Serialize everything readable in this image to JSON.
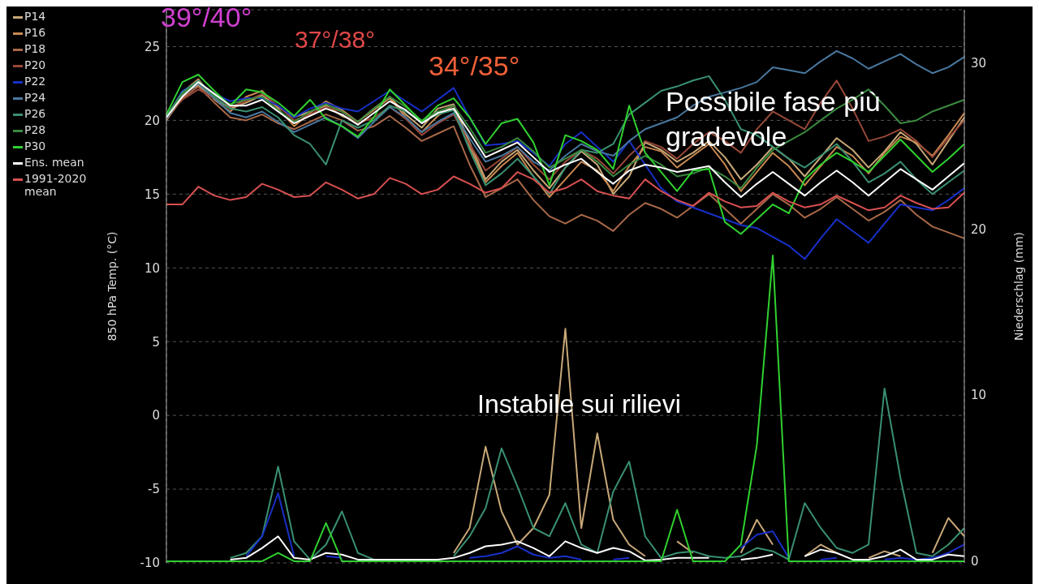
{
  "chart_data": {
    "type": "line",
    "ylabel": "850 hPa Temp. (°C)",
    "y2label": "Niederschlag (mm)",
    "categories": [
      null,
      null,
      null,
      null,
      null,
      null,
      null,
      null,
      null,
      null,
      null,
      null,
      null,
      null,
      null,
      null,
      null,
      null,
      null,
      null,
      null,
      null,
      null,
      null,
      null,
      null,
      null,
      null,
      null,
      null,
      null,
      null,
      null,
      null,
      null,
      null,
      null,
      null,
      null,
      null,
      null,
      null,
      null,
      null,
      null,
      null,
      null,
      null,
      null,
      null,
      null
    ],
    "ylim": [
      -10,
      27.5
    ],
    "yticks": [
      -10,
      -5,
      0,
      5,
      10,
      15,
      20,
      25
    ],
    "y2lim": [
      -0.1,
      33.2
    ],
    "y2ticks": [
      0,
      10,
      20,
      30
    ],
    "grid": true,
    "legend": "left",
    "tick_labels": "y",
    "line_style": "solid",
    "annotations": [
      "39°/40°",
      "37°/38°",
      "34°/35°",
      "Possibile fase più gradevole",
      "Instabile sui rilievi"
    ],
    "series": [
      {
        "name": "P14",
        "color": "#c8a878",
        "values": [
          20.0,
          21.8,
          22.4,
          21.5,
          20.8,
          21.2,
          21.7,
          20.9,
          20.2,
          20.6,
          21.0,
          20.3,
          19.9,
          20.8,
          21.6,
          20.4,
          19.5,
          20.8,
          21.1,
          18.5,
          16.0,
          17.2,
          18.0,
          16.6,
          15.4,
          16.8,
          17.9,
          17.0,
          15.0,
          16.2,
          18.5,
          18.0,
          17.2,
          17.8,
          18.6,
          17.5,
          16.0,
          17.0,
          18.2,
          17.4,
          16.2,
          17.5,
          18.8,
          18.0,
          16.8,
          17.9,
          19.2,
          18.4,
          17.0,
          18.6,
          20.2
        ]
      },
      {
        "name": "P16",
        "color": "#c88850",
        "values": [
          20.1,
          21.9,
          22.8,
          21.4,
          20.6,
          21.6,
          22.0,
          20.8,
          19.6,
          20.5,
          21.3,
          20.7,
          19.9,
          20.7,
          21.5,
          20.2,
          19.2,
          20.3,
          21.0,
          18.2,
          15.8,
          16.9,
          17.8,
          16.2,
          14.8,
          16.0,
          17.2,
          16.6,
          15.2,
          16.9,
          18.2,
          17.9,
          16.8,
          17.6,
          18.4,
          17.0,
          15.2,
          16.5,
          17.8,
          16.9,
          15.6,
          16.9,
          18.2,
          17.6,
          16.4,
          17.8,
          18.9,
          18.5,
          17.6,
          19.0,
          20.5
        ]
      },
      {
        "name": "P18",
        "color": "#a86848",
        "values": [
          20.0,
          21.5,
          22.3,
          21.2,
          20.2,
          20.0,
          20.4,
          19.8,
          19.4,
          19.9,
          20.4,
          20.0,
          19.3,
          19.6,
          20.3,
          19.5,
          18.6,
          19.1,
          19.6,
          17.0,
          14.8,
          15.4,
          16.0,
          14.6,
          13.5,
          13.0,
          13.6,
          13.2,
          12.5,
          13.6,
          14.4,
          14.0,
          13.4,
          14.2,
          15.0,
          14.0,
          13.0,
          14.0,
          15.0,
          14.3,
          13.4,
          14.0,
          14.8,
          14.0,
          13.2,
          13.8,
          14.6,
          13.6,
          12.8,
          12.4,
          12.0
        ]
      },
      {
        "name": "P20",
        "color": "#984838",
        "values": [
          20.3,
          21.4,
          22.1,
          21.5,
          20.9,
          21.3,
          21.8,
          21.0,
          20.0,
          20.4,
          20.9,
          20.6,
          19.8,
          20.2,
          20.9,
          20.1,
          19.0,
          19.8,
          20.4,
          18.4,
          16.6,
          17.4,
          18.2,
          17.0,
          16.0,
          17.2,
          18.0,
          17.4,
          16.4,
          17.6,
          18.6,
          18.2,
          17.4,
          18.4,
          19.2,
          18.6,
          17.8,
          19.4,
          20.6,
          20.0,
          19.4,
          21.2,
          22.7,
          20.8,
          18.6,
          18.9,
          19.4,
          18.6,
          17.5,
          18.8,
          20.0
        ]
      },
      {
        "name": "P22",
        "color": "#1830c8",
        "values": [
          20.2,
          22.0,
          22.6,
          21.8,
          21.3,
          21.5,
          21.5,
          21.0,
          20.2,
          20.8,
          21.2,
          20.8,
          20.6,
          21.3,
          22.0,
          21.3,
          20.6,
          21.4,
          22.2,
          20.2,
          18.3,
          18.4,
          18.6,
          17.8,
          16.9,
          18.4,
          19.2,
          18.2,
          17.2,
          18.6,
          17.0,
          15.4,
          14.5,
          14.1,
          13.7,
          13.3,
          12.9,
          12.7,
          12.1,
          11.5,
          10.6,
          12.0,
          13.3,
          12.5,
          11.7,
          13.0,
          14.3,
          14.1,
          13.9,
          14.6,
          15.4
        ]
      },
      {
        "name": "P24",
        "color": "#4878a0",
        "values": [
          20.1,
          21.7,
          22.5,
          21.5,
          20.5,
          20.2,
          20.6,
          19.9,
          19.2,
          19.7,
          20.2,
          19.6,
          18.8,
          19.9,
          20.9,
          20.2,
          19.2,
          19.9,
          20.5,
          18.8,
          17.2,
          17.6,
          18.2,
          17.2,
          16.6,
          17.6,
          18.4,
          17.9,
          17.6,
          18.6,
          19.4,
          19.8,
          20.2,
          21.0,
          21.6,
          21.9,
          22.2,
          22.6,
          23.6,
          23.4,
          23.2,
          24.0,
          24.7,
          24.2,
          23.5,
          24.0,
          24.5,
          23.8,
          23.2,
          23.6,
          24.3
        ]
      },
      {
        "name": "P26",
        "color": "#3a9070",
        "values": [
          20.3,
          21.9,
          22.7,
          21.6,
          20.8,
          20.6,
          20.9,
          20.2,
          19.0,
          18.4,
          17.0,
          20.0,
          19.5,
          20.0,
          21.0,
          20.6,
          19.9,
          20.4,
          20.7,
          18.0,
          15.6,
          16.4,
          17.4,
          16.2,
          15.0,
          16.8,
          18.0,
          17.8,
          18.4,
          20.4,
          21.2,
          22.0,
          22.3,
          22.7,
          23.0,
          21.4,
          19.4,
          19.0,
          18.2,
          17.4,
          16.8,
          17.6,
          18.4,
          17.2,
          15.8,
          16.4,
          17.2,
          16.0,
          15.0,
          15.8,
          16.6
        ]
      },
      {
        "name": "P28",
        "color": "#3a8a40",
        "values": [
          20.2,
          21.8,
          22.6,
          21.7,
          21.1,
          21.4,
          21.6,
          20.7,
          19.9,
          20.6,
          21.1,
          20.6,
          19.9,
          20.8,
          21.6,
          20.9,
          20.0,
          20.6,
          21.0,
          19.5,
          17.8,
          18.2,
          18.8,
          17.9,
          16.8,
          17.4,
          18.0,
          17.2,
          16.2,
          17.0,
          17.6,
          17.0,
          16.2,
          16.4,
          16.8,
          16.2,
          15.4,
          16.8,
          18.0,
          18.6,
          19.2,
          20.0,
          20.8,
          21.4,
          22.1,
          21.0,
          19.8,
          20.0,
          20.6,
          21.0,
          21.4
        ]
      },
      {
        "name": "P30",
        "color": "#30d030",
        "values": [
          20.4,
          22.6,
          23.1,
          22.0,
          21.0,
          22.1,
          21.9,
          21.2,
          20.3,
          21.4,
          20.1,
          19.6,
          18.9,
          20.2,
          22.1,
          21.0,
          19.9,
          21.0,
          21.5,
          20.2,
          18.4,
          19.8,
          20.1,
          18.5,
          15.6,
          19.0,
          18.6,
          18.0,
          16.7,
          21.0,
          17.8,
          16.5,
          15.2,
          16.6,
          16.7,
          13.1,
          12.3,
          13.3,
          14.3,
          13.7,
          16.0,
          17.0,
          17.8,
          17.2,
          16.5,
          17.6,
          18.7,
          17.6,
          16.5,
          17.4,
          18.4
        ]
      },
      {
        "name": "Ens. mean",
        "color": "#ffffff",
        "values": [
          20.2,
          21.6,
          22.6,
          21.8,
          21.0,
          21.0,
          21.4,
          20.6,
          19.8,
          20.3,
          20.8,
          20.4,
          19.7,
          20.5,
          21.3,
          20.7,
          19.8,
          20.5,
          20.8,
          19.2,
          17.5,
          18.0,
          18.5,
          17.5,
          16.5,
          17.0,
          17.4,
          16.5,
          15.7,
          16.6,
          17.0,
          16.8,
          16.5,
          16.7,
          16.9,
          15.8,
          14.8,
          15.7,
          16.5,
          15.7,
          14.9,
          15.8,
          16.6,
          15.8,
          14.9,
          15.8,
          16.7,
          16.0,
          15.3,
          16.2,
          17.1
        ]
      },
      {
        "name": "1991-2020 mean",
        "color": "#d85050",
        "values": [
          14.3,
          14.3,
          15.5,
          14.9,
          14.6,
          14.8,
          15.7,
          15.3,
          14.8,
          14.9,
          15.8,
          15.3,
          14.7,
          15.0,
          16.1,
          15.7,
          15.0,
          15.3,
          16.2,
          15.7,
          15.1,
          15.4,
          16.5,
          16.0,
          15.1,
          15.4,
          16.0,
          15.2,
          14.9,
          14.7,
          16.0,
          15.2,
          14.6,
          14.2,
          15.1,
          14.5,
          14.1,
          14.2,
          15.1,
          14.5,
          14.1,
          14.3,
          14.9,
          14.4,
          13.9,
          14.1,
          14.9,
          14.4,
          14.0,
          14.1,
          15.1
        ]
      },
      {
        "axis": "y2",
        "color": "#c8a878",
        "values": [
          null,
          null,
          null,
          null,
          null,
          null,
          null,
          null,
          null,
          null,
          null,
          null,
          null,
          null,
          null,
          null,
          null,
          null,
          0.5,
          2.0,
          6.9,
          3.0,
          1.0,
          2.0,
          4.0,
          14.0,
          2.0,
          7.7,
          2.5,
          1.0,
          0.3,
          null,
          1.2,
          0.5,
          null,
          null,
          0.5,
          2.5,
          1.0,
          null,
          0.3,
          1.0,
          0.5,
          null,
          0.2,
          0.6,
          0.3,
          null,
          0.5,
          2.6,
          1.5
        ]
      },
      {
        "axis": "y2",
        "color": "#3a9070",
        "values": [
          null,
          null,
          null,
          null,
          0.2,
          0.5,
          1.5,
          5.7,
          1.2,
          0.1,
          1.0,
          3.0,
          0.5,
          0.1,
          null,
          null,
          null,
          null,
          0.3,
          1.5,
          3.2,
          6.8,
          4.5,
          2.0,
          1.5,
          3.5,
          1.0,
          0.5,
          4.2,
          6.0,
          1.5,
          0.2,
          0.5,
          0.6,
          0.3,
          0.2,
          0.3,
          0.8,
          0.6,
          0.1,
          3.5,
          2.0,
          0.8,
          0.5,
          1.0,
          10.4,
          5.0,
          0.5,
          0.3,
          1.0,
          2.0
        ]
      },
      {
        "axis": "y2",
        "color": "#1830c8",
        "values": [
          null,
          null,
          null,
          null,
          null,
          0.3,
          1.5,
          4.1,
          0.3,
          null,
          0.3,
          0.2,
          null,
          null,
          null,
          null,
          null,
          null,
          null,
          0.2,
          0.3,
          0.5,
          0.9,
          0.4,
          0.2,
          0.3,
          0.1,
          null,
          0.1,
          0.2,
          null,
          null,
          null,
          null,
          null,
          null,
          0.8,
          1.6,
          1.8,
          0.2,
          null,
          0.1,
          0.2,
          null,
          null,
          0.1,
          0.2,
          0.1,
          0.2,
          0.5,
          1.0
        ]
      },
      {
        "axis": "y2",
        "color": "#ffffff",
        "values": [
          null,
          null,
          null,
          null,
          0.1,
          0.2,
          0.8,
          1.5,
          0.2,
          0.1,
          0.5,
          0.4,
          0.1,
          0.1,
          0.1,
          0.1,
          0.1,
          0.1,
          0.2,
          0.5,
          0.9,
          1.0,
          1.2,
          0.8,
          0.3,
          1.2,
          0.8,
          0.5,
          0.8,
          0.6,
          0.05,
          0.1,
          0.2,
          0.2,
          0.2,
          null,
          0.1,
          0.2,
          0.4,
          null,
          0.3,
          0.7,
          0.5,
          0.1,
          0.1,
          0.3,
          0.7,
          0.1,
          0.1,
          0.4,
          0.3
        ]
      },
      {
        "axis": "y2",
        "color": "#30d030",
        "values": [
          0,
          0,
          0,
          0,
          0,
          0,
          0,
          0.5,
          0,
          0,
          2.3,
          0,
          0,
          0,
          0,
          0,
          0,
          0,
          0,
          0,
          0,
          0,
          0,
          0,
          0,
          0,
          0,
          0,
          0,
          0,
          0,
          0,
          3.1,
          0,
          0,
          0,
          1.0,
          7.0,
          18.4,
          0,
          0,
          0,
          0,
          0,
          0,
          0,
          0,
          0,
          0,
          0,
          0
        ]
      }
    ]
  }
}
